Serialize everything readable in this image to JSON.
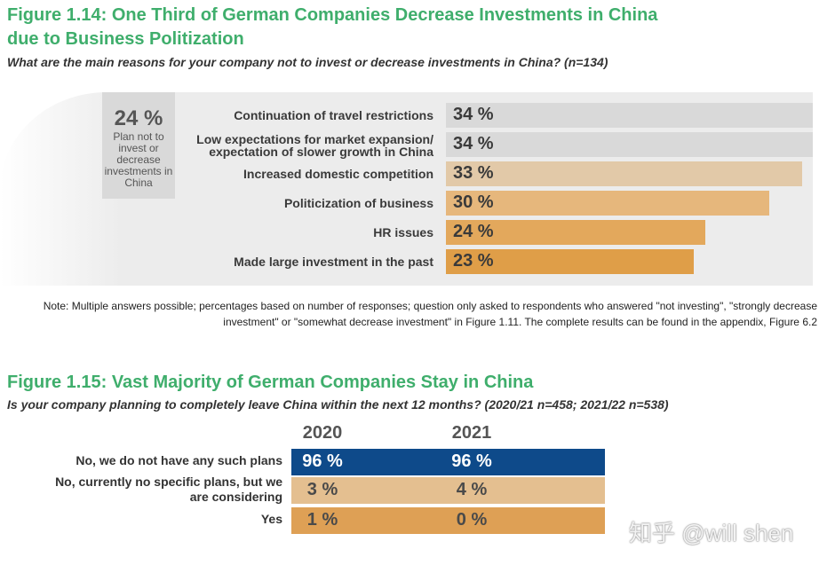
{
  "figure14": {
    "title_line1": "Figure 1.14: One Third of German Companies Decrease Investments in China",
    "title_line2": "due to Business Politization",
    "subtitle": "What are the main reasons for your company not to invest or decrease investments in China? (n=134)",
    "share_pct": "24 %",
    "share_note": "Plan not to invest or decrease investments in China",
    "note": "Note: Multiple answers possible; percentages based on number of responses; question only asked to respondents who answered \"not investing\", \"strongly decrease investment\" or \"somewhat decrease investment\" in Figure 1.11. The complete results can be found in the appendix, Figure 6.2"
  },
  "chart_data": [
    {
      "type": "bar",
      "orientation": "horizontal",
      "categories": [
        "Continuation of travel restrictions",
        "Low expectations for market expansion/ expectation of slower growth in China",
        "Increased domestic competition",
        "Politicization of business",
        "HR issues",
        "Made large investment in the past"
      ],
      "values": [
        34,
        34,
        33,
        30,
        24,
        23
      ],
      "value_labels": [
        "34 %",
        "34 %",
        "33 %",
        "30 %",
        "24 %",
        "23 %"
      ],
      "colors": [
        "#d9d9d9",
        "#d9d9d9",
        "#e2c9a8",
        "#e6b77c",
        "#e3a85c",
        "#df9e48"
      ]
    },
    {
      "type": "table",
      "title": "Figure 1.15: Vast Majority of German Companies Stay in China",
      "subtitle": "Is your company planning to completely leave China within the next 12 months? (2020/21 n=458; 2021/22 n=538)",
      "columns": [
        "2020",
        "2021"
      ],
      "rows": [
        {
          "label": "No, we do not have any such plans",
          "values": [
            "96 %",
            "96 %"
          ],
          "color": "#0e4a8a",
          "text_color": "#ffffff"
        },
        {
          "label": "No, currently no specific plans, but we are considering",
          "values": [
            "3 %",
            "4 %"
          ],
          "color": "#e4bf90",
          "text_color": "#4a4a4a"
        },
        {
          "label": "Yes",
          "values": [
            "1 %",
            "0 %"
          ],
          "color": "#dea055",
          "text_color": "#4a4a4a"
        }
      ]
    }
  ],
  "watermark": "知乎 @will shen"
}
